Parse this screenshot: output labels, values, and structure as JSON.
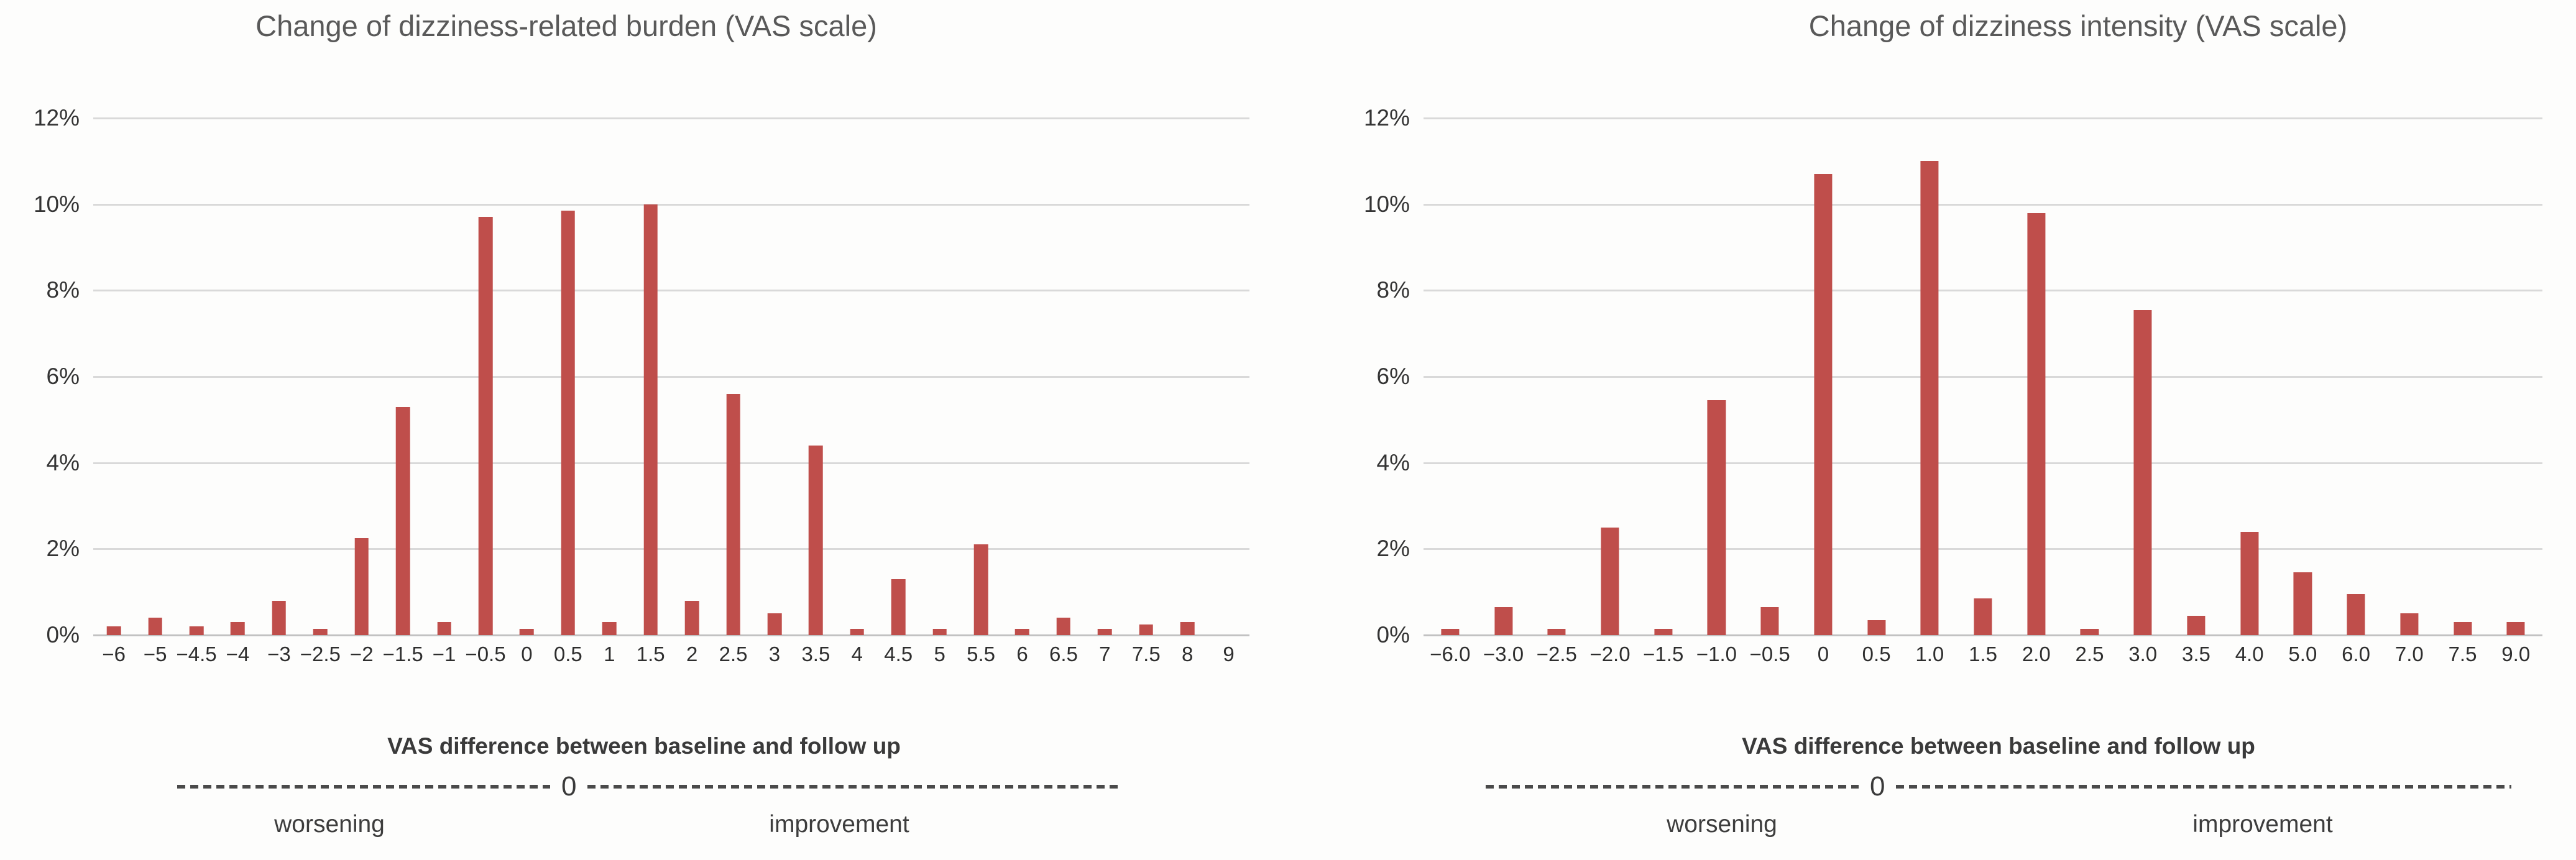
{
  "accent_color": "#bf4e4b",
  "gridline_color": "#d9d9d9",
  "baseline_color": "#c2c2c2",
  "text_color": "#595959",
  "chart_data": [
    {
      "type": "bar",
      "title": "Change of dizziness-related burden (VAS scale)",
      "categories": [
        "−6",
        "−5",
        "−4.5",
        "−4",
        "−3",
        "−2.5",
        "−2",
        "−1.5",
        "−1",
        "−0.5",
        "0",
        "0.5",
        "1",
        "1.5",
        "2",
        "2.5",
        "3",
        "3.5",
        "4",
        "4.5",
        "5",
        "5.5",
        "6",
        "6.5",
        "7",
        "7.5",
        "8",
        "9"
      ],
      "values": [
        0.2,
        0.4,
        0.2,
        0.3,
        0.8,
        0.15,
        2.25,
        5.3,
        0.3,
        9.7,
        0.15,
        9.85,
        0.3,
        10.0,
        0.8,
        5.6,
        0.5,
        4.4,
        0.15,
        1.3,
        0.15,
        2.1,
        0.15,
        0.4,
        0.15,
        0.25,
        0.3,
        0
      ],
      "ylim": [
        0,
        12
      ],
      "yticks": [
        "12%",
        "10%",
        "8%",
        "6%",
        "4%",
        "2%",
        "0%"
      ],
      "grid": true,
      "legend": "none",
      "bar_color": "#bf4e4b",
      "xlabel_footer": "VAS difference between baseline and follow up",
      "axis_annotation": {
        "zero_label": "0",
        "left_word": "worsening",
        "right_word": "improvement"
      }
    },
    {
      "type": "bar",
      "title": "Change of dizziness intensity (VAS scale)",
      "categories": [
        "−6.0",
        "−3.0",
        "−2.5",
        "−2.0",
        "−1.5",
        "−1.0",
        "−0.5",
        "0",
        "0.5",
        "1.0",
        "1.5",
        "2.0",
        "2.5",
        "3.0",
        "3.5",
        "4.0",
        "5.0",
        "6.0",
        "7.0",
        "7.5",
        "9.0"
      ],
      "values": [
        0.15,
        0.65,
        0.15,
        2.5,
        0.15,
        5.45,
        0.65,
        10.7,
        0.35,
        11.0,
        0.85,
        9.8,
        0.15,
        7.55,
        0.45,
        2.4,
        1.45,
        0.95,
        0.5,
        0.3,
        0.3
      ],
      "ylim": [
        0,
        12
      ],
      "yticks": [
        "12%",
        "10%",
        "8%",
        "6%",
        "4%",
        "2%",
        "0%"
      ],
      "grid": true,
      "legend": "none",
      "bar_color": "#bf4e4b",
      "xlabel_footer": "VAS difference between baseline and follow up",
      "axis_annotation": {
        "zero_label": "0",
        "left_word": "worsening",
        "right_word": "improvement"
      }
    }
  ]
}
